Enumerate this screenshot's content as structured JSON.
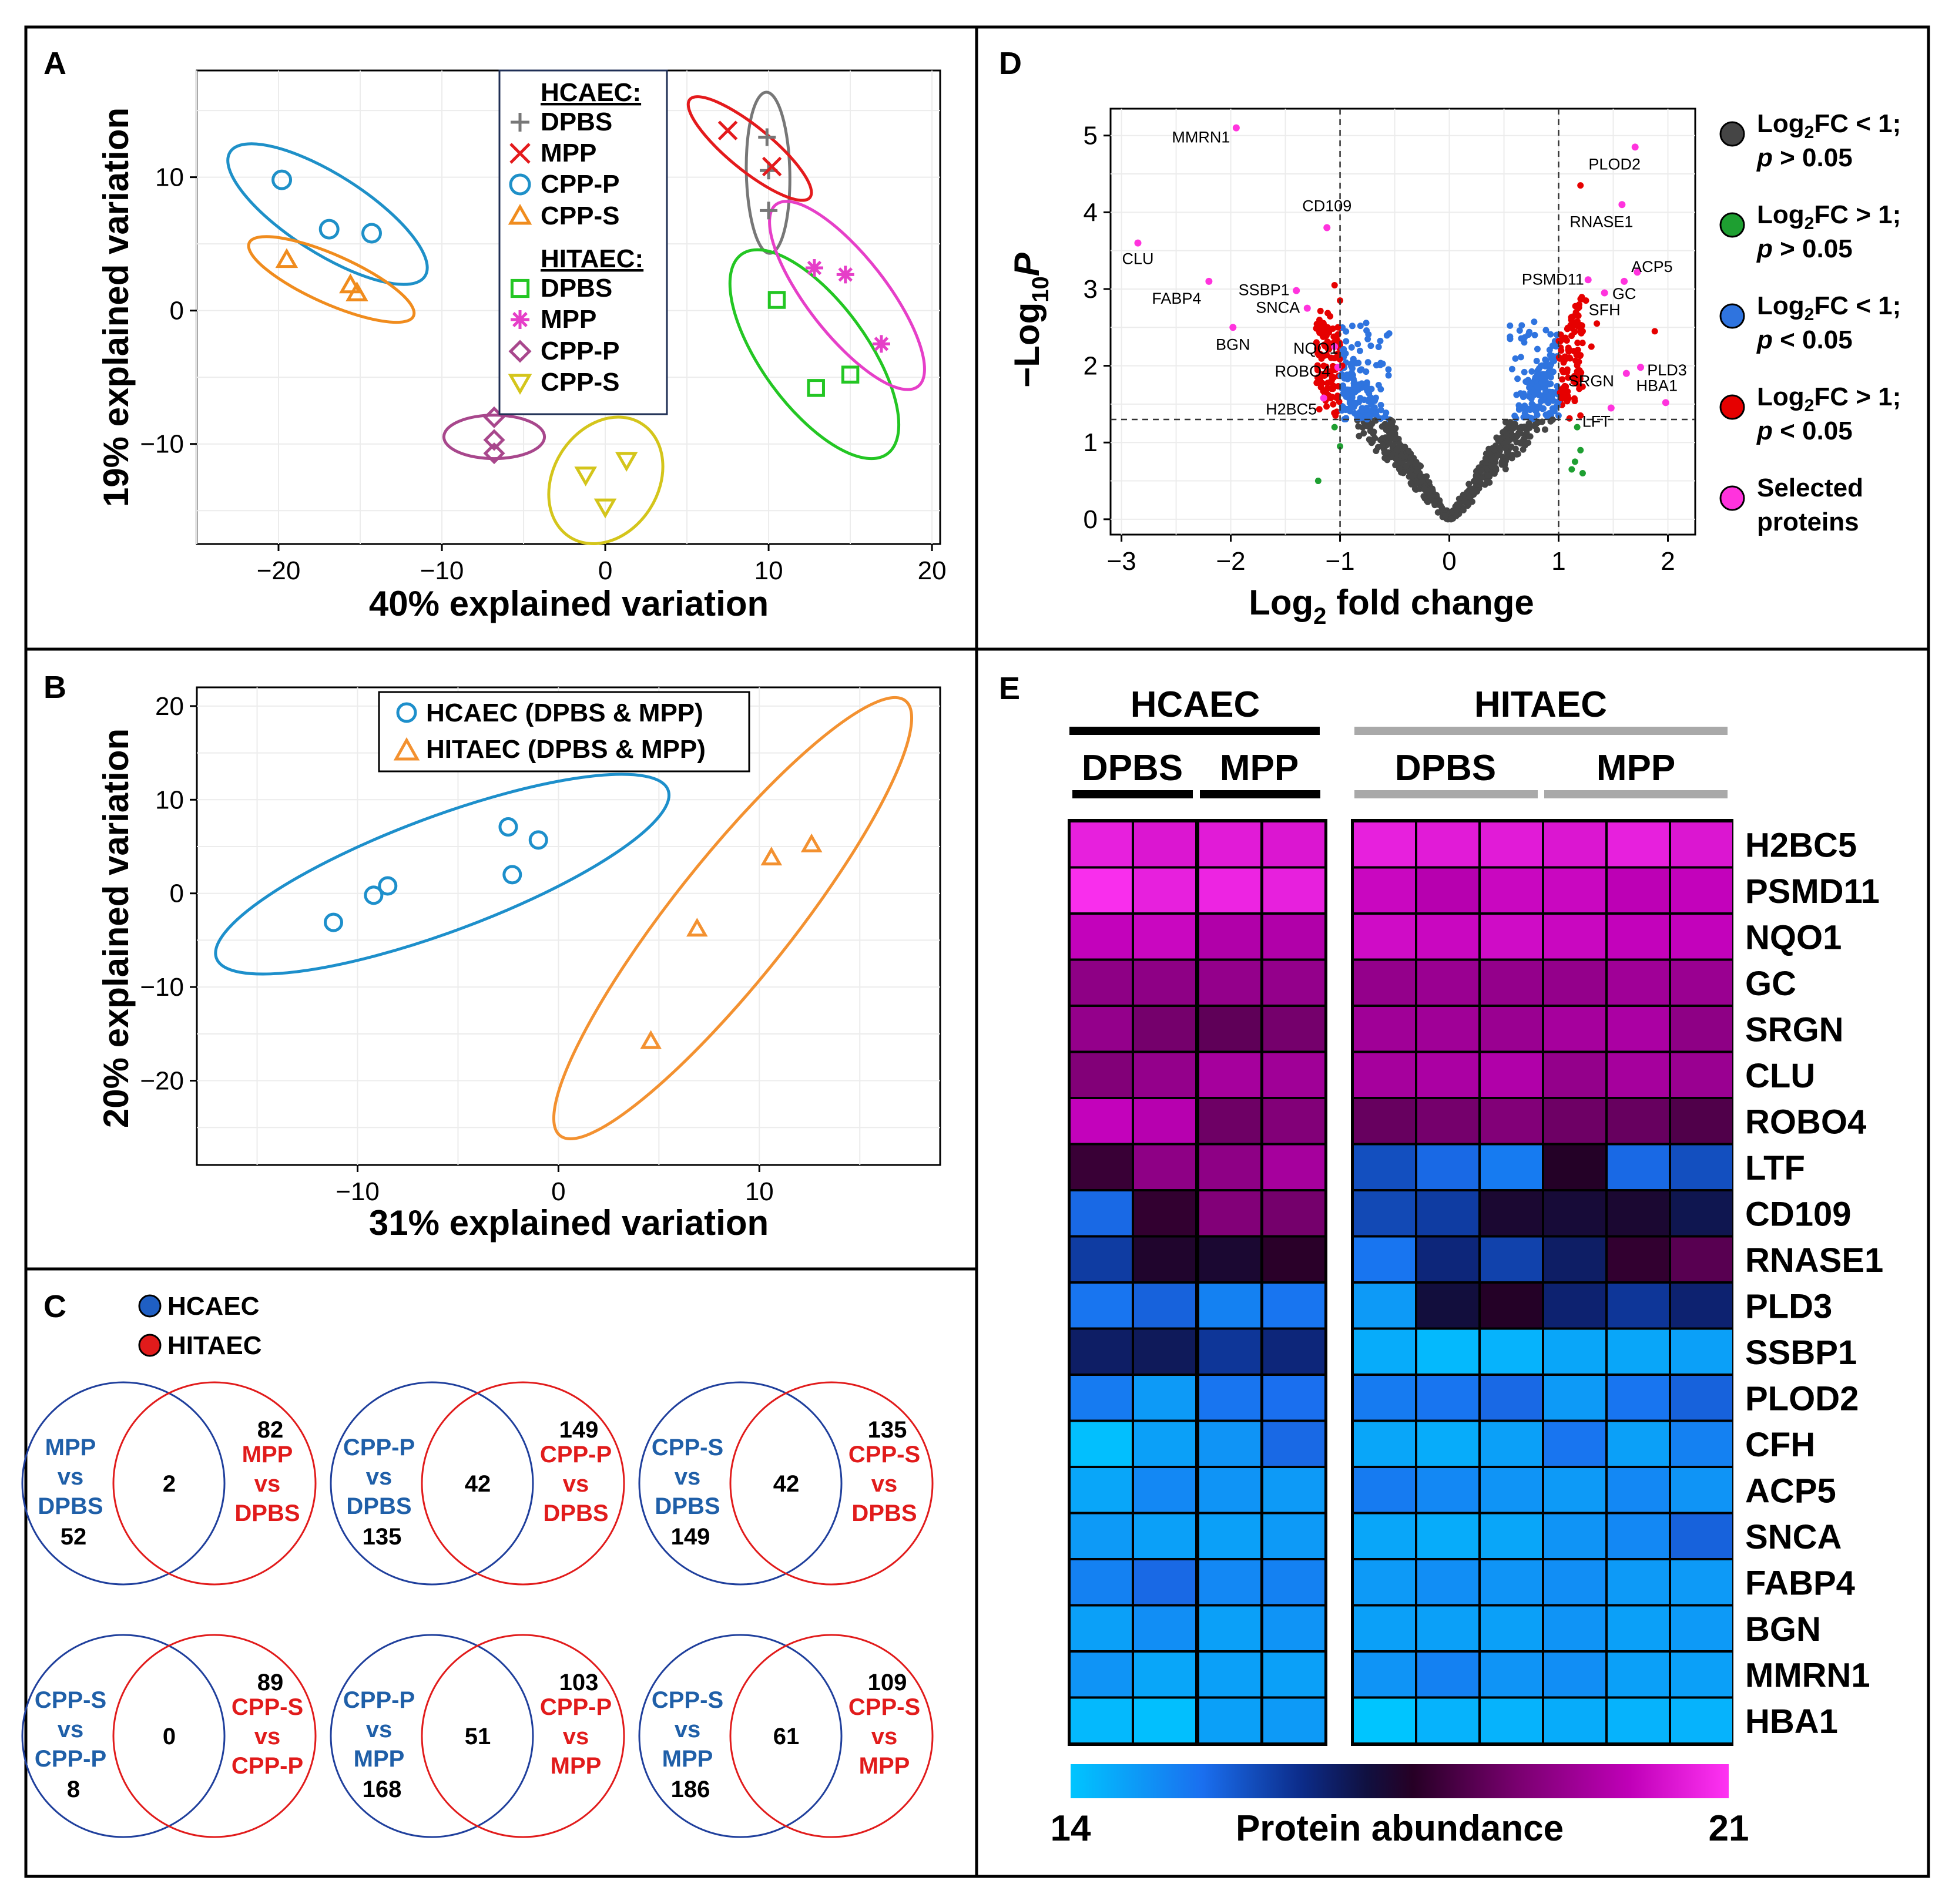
{
  "colors": {
    "hcaec": "#1d8fcb",
    "hitaec": "#f39130",
    "venn_blue": "#1f3f9c",
    "venn_blue_text": "#1f5fa8",
    "venn_red": "#e11b1b",
    "dpbs_hc": "#777777",
    "mpp_hc": "#e41a1c",
    "cppp_hc": "#1e90c8",
    "cpps_hc": "#f08c1e",
    "dpbs_hi": "#23c623",
    "mpp_hi": "#e63fc8",
    "cppp_hi": "#a8478c",
    "cpps_hi": "#d4c51b",
    "volcano_ns": "#454545",
    "volcano_fc": "#1e9f31",
    "volcano_p": "#2f74df",
    "volcano_both": "#e60000",
    "volcano_selected": "#ff33dd"
  },
  "panels": {
    "A": {
      "label": "A",
      "xlabel": "40% explained variation",
      "ylabel": "19% explained variation",
      "legend": {
        "group1_title": "HCAEC:",
        "group2_title": "HITAEC:",
        "entries1": [
          "DPBS",
          "MPP",
          "CPP-P",
          "CPP-S"
        ],
        "entries2": [
          "DPBS",
          "MPP",
          "CPP-P",
          "CPP-S"
        ]
      }
    },
    "B": {
      "label": "B",
      "xlabel": "31% explained variation",
      "ylabel": "20% explained variation",
      "legend": [
        "HCAEC (DPBS & MPP)",
        "HITAEC (DPBS & MPP)"
      ]
    },
    "C": {
      "label": "C",
      "legend": [
        "HCAEC",
        "HITAEC"
      ],
      "venns": [
        {
          "left": [
            "MPP",
            "vs",
            "DPBS"
          ],
          "left_n": "52",
          "overlap": "2",
          "right": [
            "MPP",
            "vs",
            "DPBS"
          ],
          "right_n": "82"
        },
        {
          "left": [
            "CPP-P",
            "vs",
            "DPBS"
          ],
          "left_n": "135",
          "overlap": "42",
          "right": [
            "CPP-P",
            "vs",
            "DPBS"
          ],
          "right_n": "149"
        },
        {
          "left": [
            "CPP-S",
            "vs",
            "DPBS"
          ],
          "left_n": "149",
          "overlap": "42",
          "right": [
            "CPP-S",
            "vs",
            "DPBS"
          ],
          "right_n": "135"
        },
        {
          "left": [
            "CPP-S",
            "vs",
            "CPP-P"
          ],
          "left_n": "8",
          "overlap": "0",
          "right": [
            "CPP-S",
            "vs",
            "CPP-P"
          ],
          "right_n": "89"
        },
        {
          "left": [
            "CPP-P",
            "vs",
            "MPP"
          ],
          "left_n": "168",
          "overlap": "51",
          "right": [
            "CPP-P",
            "vs",
            "MPP"
          ],
          "right_n": "103"
        },
        {
          "left": [
            "CPP-S",
            "vs",
            "MPP"
          ],
          "left_n": "186",
          "overlap": "61",
          "right": [
            "CPP-S",
            "vs",
            "MPP"
          ],
          "right_n": "109"
        }
      ]
    },
    "D": {
      "label": "D",
      "xlabel": "Log",
      "xlabel_sub": "2",
      "xlabel_rest": " fold change",
      "ylabel_prefix": "−Log",
      "ylabel_sub": "10",
      "ylabel_p": "P",
      "legend": [
        {
          "line1": "Log2FC < 1;",
          "line2": "p > 0.05",
          "l1a": "Log",
          "l1sub": "2",
          "l1b": "FC < 1;",
          "l2p": "p",
          "l2b": " > 0.05"
        },
        {
          "line1": "Log2FC > 1;",
          "line2": "p > 0.05",
          "l1a": "Log",
          "l1sub": "2",
          "l1b": "FC > 1;",
          "l2p": "p",
          "l2b": " > 0.05"
        },
        {
          "line1": "Log2FC < 1;",
          "line2": "p < 0.05",
          "l1a": "Log",
          "l1sub": "2",
          "l1b": "FC < 1;",
          "l2p": "p",
          "l2b": " < 0.05"
        },
        {
          "line1": "Log2FC > 1;",
          "line2": "p < 0.05",
          "l1a": "Log",
          "l1sub": "2",
          "l1b": "FC > 1;",
          "l2p": "p",
          "l2b": " < 0.05"
        },
        {
          "line1": "Selected",
          "line2": "proteins"
        }
      ]
    },
    "E": {
      "label": "E",
      "group_labels": [
        "HCAEC",
        "HITAEC"
      ],
      "sub_labels": [
        "DPBS",
        "MPP",
        "DPBS",
        "MPP"
      ],
      "colorbar_min": "14",
      "colorbar_max": "21",
      "colorbar_title": "Protein abundance"
    }
  },
  "chart_data": [
    {
      "type": "scatter",
      "panel": "A",
      "xlabel": "40% explained variation",
      "ylabel": "19% explained variation",
      "xlim": [
        -25,
        20.5
      ],
      "ylim": [
        -17.5,
        18
      ],
      "xticks": [
        -20,
        -10,
        0,
        10,
        20
      ],
      "yticks": [
        -10,
        0,
        10
      ],
      "grid": true,
      "legend_position": "top-center",
      "series": [
        {
          "name": "DPBS",
          "group": "HCAEC",
          "marker": "plus",
          "points": [
            [
              9.9,
              13
            ],
            [
              10,
              10.5
            ],
            [
              10,
              7.5
            ]
          ]
        },
        {
          "name": "MPP",
          "group": "HCAEC",
          "marker": "x",
          "points": [
            [
              7.5,
              13.5
            ],
            [
              10.2,
              10.8
            ]
          ]
        },
        {
          "name": "CPP-P",
          "group": "HCAEC",
          "marker": "circle",
          "points": [
            [
              -19.8,
              9.8
            ],
            [
              -16.9,
              6.1
            ],
            [
              -14.3,
              5.8
            ]
          ]
        },
        {
          "name": "CPP-S",
          "group": "HCAEC",
          "marker": "triangle",
          "points": [
            [
              -19.5,
              3.8
            ],
            [
              -15.6,
              1.9
            ],
            [
              -15.2,
              1.3
            ]
          ]
        },
        {
          "name": "DPBS",
          "group": "HITAEC",
          "marker": "square",
          "points": [
            [
              10.5,
              0.8
            ],
            [
              12.9,
              -5.8
            ],
            [
              15,
              -4.8
            ]
          ]
        },
        {
          "name": "MPP",
          "group": "HITAEC",
          "marker": "asterisk",
          "points": [
            [
              12.8,
              3.2
            ],
            [
              14.7,
              2.7
            ],
            [
              16.9,
              -2.5
            ]
          ]
        },
        {
          "name": "CPP-P",
          "group": "HITAEC",
          "marker": "diamond",
          "points": [
            [
              -6.8,
              -8
            ],
            [
              -6.8,
              -9.7
            ],
            [
              -6.8,
              -10.7
            ]
          ]
        },
        {
          "name": "CPP-S",
          "group": "HITAEC",
          "marker": "triangle-down",
          "points": [
            [
              -1.2,
              -12.3
            ],
            [
              0,
              -14.7
            ],
            [
              1.3,
              -11.2
            ]
          ]
        }
      ]
    },
    {
      "type": "scatter",
      "panel": "B",
      "xlabel": "31% explained variation",
      "ylabel": "20% explained variation",
      "xlim": [
        -18,
        19
      ],
      "ylim": [
        -29,
        22
      ],
      "xticks": [
        -10,
        0,
        10
      ],
      "yticks": [
        -20,
        -10,
        0,
        10,
        20
      ],
      "grid": true,
      "legend_position": "top-center",
      "series": [
        {
          "name": "HCAEC (DPBS & MPP)",
          "marker": "circle",
          "points": [
            [
              -11.2,
              -3.1
            ],
            [
              -9.2,
              -0.2
            ],
            [
              -8.5,
              0.8
            ],
            [
              -2.5,
              7.1
            ],
            [
              -2.3,
              2.0
            ],
            [
              -1.0,
              5.7
            ]
          ]
        },
        {
          "name": "HITAEC (DPBS & MPP)",
          "marker": "triangle",
          "points": [
            [
              4.6,
              -15.8
            ],
            [
              6.9,
              -3.8
            ],
            [
              10.6,
              3.8
            ],
            [
              12.6,
              5.2
            ]
          ]
        }
      ]
    },
    {
      "type": "scatter",
      "panel": "D",
      "xlabel": "Log2 fold change",
      "ylabel": "-Log10 P",
      "xlim": [
        -3.1,
        2.25
      ],
      "ylim": [
        -0.2,
        5.35
      ],
      "xticks": [
        -3,
        -2,
        -1,
        0,
        1,
        2
      ],
      "yticks": [
        0,
        1,
        2,
        3,
        4,
        5
      ],
      "vlines": [
        -1,
        1
      ],
      "hline": 1.3,
      "legend_position": "right",
      "selected_proteins": [
        {
          "label": "MMRN1",
          "x": -1.95,
          "y": 5.1
        },
        {
          "label": "CLU",
          "x": -2.85,
          "y": 3.6
        },
        {
          "label": "FABP4",
          "x": -2.2,
          "y": 3.1
        },
        {
          "label": "CD109",
          "x": -1.12,
          "y": 3.8
        },
        {
          "label": "SSBP1",
          "x": -1.4,
          "y": 2.98
        },
        {
          "label": "SNCA",
          "x": -1.3,
          "y": 2.75
        },
        {
          "label": "BGN",
          "x": -1.98,
          "y": 2.5
        },
        {
          "label": "NQO1",
          "x": -1.05,
          "y": 2.25
        },
        {
          "label": "ROBO4",
          "x": -1.02,
          "y": 1.98
        },
        {
          "label": "H2BC5",
          "x": -1.15,
          "y": 1.58
        },
        {
          "label": "PLOD2",
          "x": 1.7,
          "y": 4.85
        },
        {
          "label": "RNASE1",
          "x": 1.58,
          "y": 4.1
        },
        {
          "label": "PSMD11",
          "x": 1.27,
          "y": 3.12
        },
        {
          "label": "ACP5",
          "x": 1.72,
          "y": 3.22
        },
        {
          "label": "GC",
          "x": 1.6,
          "y": 3.1
        },
        {
          "label": "SFH",
          "x": 1.42,
          "y": 2.95
        },
        {
          "label": "SRGN",
          "x": 1.62,
          "y": 1.9
        },
        {
          "label": "PLD3",
          "x": 1.75,
          "y": 1.98
        },
        {
          "label": "HBA1",
          "x": 1.98,
          "y": 1.52
        },
        {
          "label": "LFT",
          "x": 1.48,
          "y": 1.45
        }
      ]
    },
    {
      "type": "heatmap",
      "panel": "E",
      "columns": [
        "HCAEC DPBS 1",
        "HCAEC DPBS 2",
        "HCAEC MPP 1",
        "HCAEC MPP 2",
        "HITAEC DPBS 1",
        "HITAEC DPBS 2",
        "HITAEC DPBS 3",
        "HITAEC MPP 1",
        "HITAEC MPP 2",
        "HITAEC MPP 3"
      ],
      "rows": [
        "H2BC5",
        "PSMD11",
        "NQO1",
        "GC",
        "SRGN",
        "CLU",
        "ROBO4",
        "LTF",
        "CD109",
        "RNASE1",
        "PLD3",
        "SSBP1",
        "PLOD2",
        "CFH",
        "ACP5",
        "SNCA",
        "FABP4",
        "BGN",
        "MMRN1",
        "HBA1"
      ],
      "value_range": [
        14,
        21
      ],
      "values": [
        [
          20.6,
          20.4,
          20.5,
          20.4,
          20.6,
          20.5,
          20.5,
          20.4,
          20.6,
          20.4
        ],
        [
          20.9,
          20.6,
          20.7,
          20.6,
          20.1,
          19.8,
          20.1,
          20.1,
          19.9,
          20.0
        ],
        [
          20.0,
          20.1,
          19.7,
          19.7,
          20.2,
          20.1,
          20.2,
          20.1,
          20.0,
          20.0
        ],
        [
          19.1,
          19.1,
          19.2,
          19.2,
          19.2,
          19.3,
          19.2,
          19.2,
          19.4,
          19.3
        ],
        [
          19.2,
          18.7,
          18.4,
          18.7,
          19.4,
          19.4,
          19.3,
          19.5,
          19.6,
          19.1
        ],
        [
          18.9,
          19.2,
          19.5,
          19.4,
          19.5,
          19.6,
          19.7,
          19.2,
          19.5,
          19.3
        ],
        [
          20.0,
          19.8,
          18.6,
          18.9,
          18.5,
          18.7,
          18.9,
          18.6,
          18.5,
          18.2
        ],
        [
          17.9,
          19.1,
          19.1,
          19.5,
          15.9,
          15.5,
          15.2,
          17.6,
          15.5,
          15.9
        ],
        [
          15.5,
          17.8,
          18.9,
          18.7,
          16.0,
          16.2,
          17.4,
          17.3,
          17.4,
          17.0
        ],
        [
          16.2,
          17.5,
          17.4,
          17.7,
          15.3,
          16.6,
          16.1,
          16.8,
          17.8,
          18.3
        ],
        [
          15.3,
          15.6,
          15.1,
          15.3,
          14.7,
          17.2,
          17.6,
          16.7,
          16.3,
          16.7
        ],
        [
          16.8,
          16.9,
          16.3,
          16.6,
          14.4,
          14.2,
          14.3,
          14.5,
          14.5,
          14.6
        ],
        [
          15.2,
          14.7,
          15.3,
          15.4,
          15.2,
          15.3,
          15.5,
          14.7,
          15.3,
          15.6
        ],
        [
          14.1,
          14.6,
          14.8,
          15.5,
          14.5,
          14.4,
          14.6,
          15.3,
          14.6,
          15.1
        ],
        [
          14.5,
          15.0,
          14.8,
          14.7,
          15.2,
          15.0,
          14.8,
          14.7,
          15.0,
          14.8
        ],
        [
          14.7,
          14.6,
          14.6,
          14.7,
          14.5,
          14.4,
          14.5,
          14.8,
          15.0,
          15.6
        ],
        [
          15.1,
          15.5,
          15.0,
          15.1,
          14.7,
          14.9,
          14.8,
          14.9,
          14.7,
          14.7
        ],
        [
          14.6,
          14.9,
          14.6,
          14.8,
          14.6,
          14.6,
          14.6,
          14.8,
          14.6,
          14.7
        ],
        [
          14.8,
          14.5,
          14.6,
          14.6,
          14.8,
          15.1,
          14.8,
          14.9,
          14.6,
          14.6
        ],
        [
          14.2,
          14.1,
          14.6,
          14.7,
          14.0,
          14.3,
          14.3,
          14.4,
          14.3,
          14.3
        ]
      ]
    }
  ]
}
